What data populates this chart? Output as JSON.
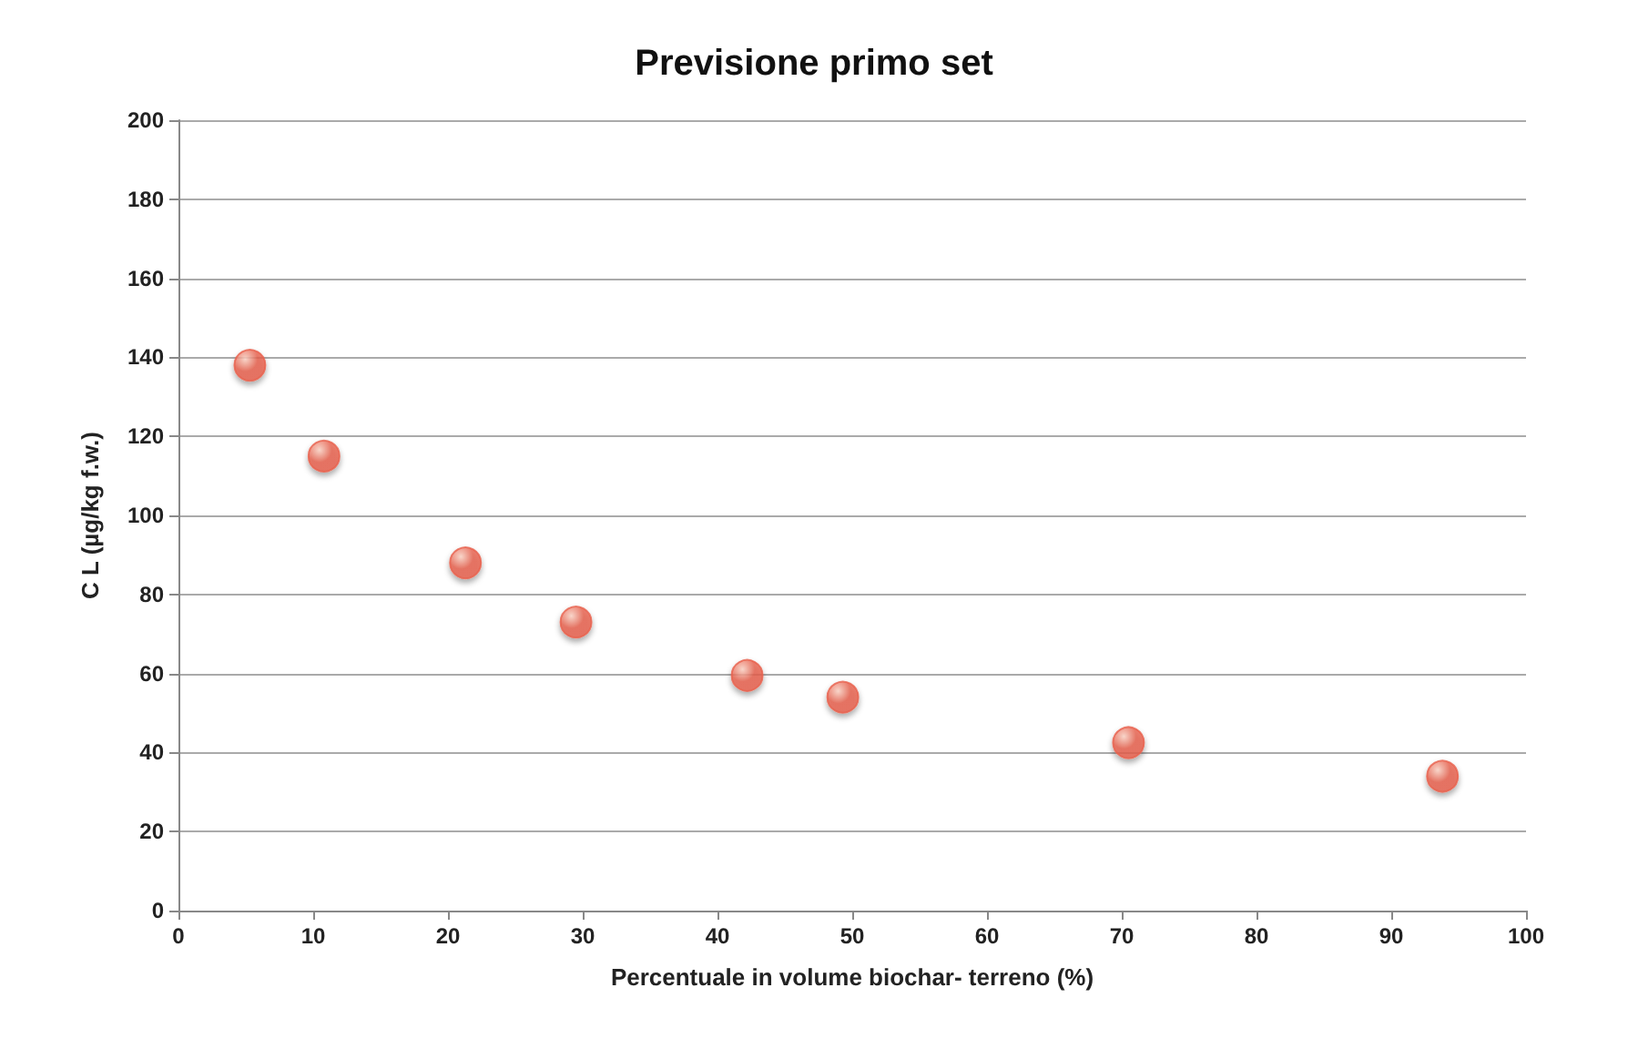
{
  "chart_data": {
    "type": "scatter",
    "title": "Previsione primo set",
    "xlabel": "Percentuale in volume biochar- terreno (%)",
    "ylabel": "C L (µg/kg f.w.)",
    "x": [
      5.3,
      10.8,
      21.3,
      29.5,
      42.2,
      49.3,
      70.5,
      93.8
    ],
    "series": [
      {
        "color": "#e8604c",
        "values": [
          138,
          115,
          88,
          73,
          59.5,
          54,
          42.5,
          34
        ]
      }
    ],
    "xlim": [
      0,
      100
    ],
    "xticks": [
      0,
      10,
      20,
      30,
      40,
      50,
      60,
      70,
      80,
      90,
      100
    ],
    "ylim": [
      0,
      200
    ],
    "yticks": [
      0,
      20,
      40,
      60,
      80,
      100,
      120,
      140,
      160,
      180,
      200
    ],
    "grid": "y",
    "marker": "circle"
  }
}
